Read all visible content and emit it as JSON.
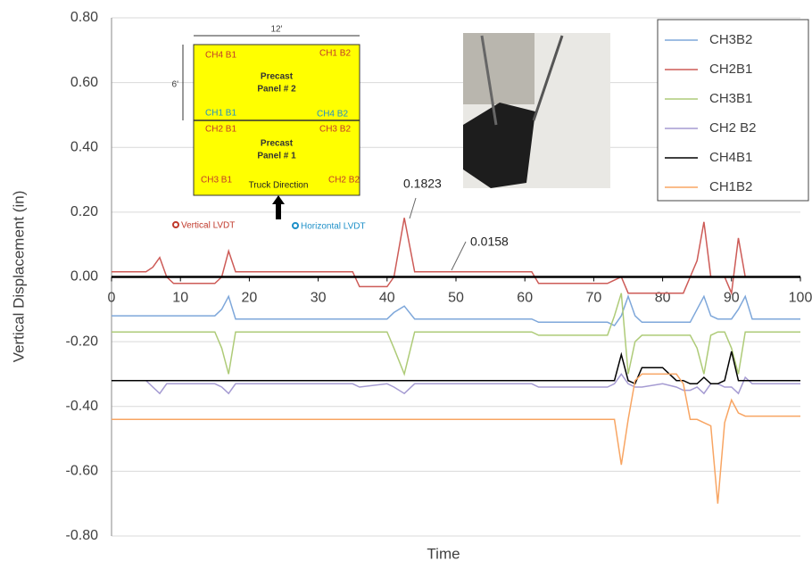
{
  "chart_data": {
    "type": "line",
    "y_label": "Vertical Displacement (in)",
    "x_label": "Time",
    "xlim": [
      0,
      100
    ],
    "xticks": [
      0,
      10,
      20,
      30,
      40,
      50,
      60,
      70,
      80,
      90,
      100
    ],
    "ylim": [
      -0.8,
      0.8
    ],
    "yticks": [
      {
        "value": -0.8,
        "label": "-0.80"
      },
      {
        "value": -0.6,
        "label": "-0.60"
      },
      {
        "value": -0.4,
        "label": "-0.40"
      },
      {
        "value": -0.2,
        "label": "-0.20"
      },
      {
        "value": 0,
        "label": "0.00"
      },
      {
        "value": 0.2,
        "label": "0.20"
      },
      {
        "value": 0.4,
        "label": "0.40"
      },
      {
        "value": 0.6,
        "label": "0.60"
      },
      {
        "value": 0.8,
        "label": "0.80"
      }
    ],
    "grid": true,
    "legend": "top-right",
    "annotations": [
      "0.1823",
      "0.0158"
    ],
    "x": [
      0,
      5,
      6,
      7,
      8,
      9,
      15,
      16,
      17,
      18,
      19,
      30,
      35,
      36,
      40,
      41,
      42.5,
      44,
      45,
      60,
      61,
      62,
      72,
      73,
      74,
      75,
      76,
      77,
      80,
      82,
      83,
      84,
      85,
      86,
      87,
      88,
      89,
      90,
      91,
      92,
      93,
      100
    ],
    "series": [
      {
        "name": "CH3B2",
        "color": "#7ea7da",
        "values": [
          -0.12,
          -0.12,
          -0.12,
          -0.12,
          -0.12,
          -0.12,
          -0.12,
          -0.1,
          -0.06,
          -0.13,
          -0.13,
          -0.13,
          -0.13,
          -0.13,
          -0.13,
          -0.11,
          -0.09,
          -0.13,
          -0.13,
          -0.13,
          -0.13,
          -0.14,
          -0.14,
          -0.15,
          -0.12,
          -0.06,
          -0.12,
          -0.14,
          -0.14,
          -0.14,
          -0.14,
          -0.14,
          -0.1,
          -0.06,
          -0.12,
          -0.13,
          -0.13,
          -0.13,
          -0.1,
          -0.06,
          -0.13,
          -0.13
        ]
      },
      {
        "name": "CH2B1",
        "color": "#cd5b57",
        "values": [
          0.016,
          0.016,
          0.03,
          0.06,
          0.0,
          -0.02,
          -0.02,
          0.0,
          0.08,
          0.016,
          0.016,
          0.016,
          0.016,
          -0.03,
          -0.03,
          0.0,
          0.1823,
          0.0158,
          0.0158,
          0.0158,
          0.0158,
          -0.02,
          -0.02,
          -0.01,
          0.0,
          -0.05,
          -0.05,
          -0.05,
          -0.05,
          -0.05,
          -0.05,
          0.0,
          0.05,
          0.17,
          0.0,
          0.0,
          0.0,
          -0.05,
          0.12,
          0.0,
          0.0,
          0.0
        ]
      },
      {
        "name": "CH3B1",
        "color": "#aecb78",
        "values": [
          -0.17,
          -0.17,
          -0.17,
          -0.17,
          -0.17,
          -0.17,
          -0.17,
          -0.22,
          -0.3,
          -0.17,
          -0.17,
          -0.17,
          -0.17,
          -0.17,
          -0.17,
          -0.22,
          -0.3,
          -0.17,
          -0.17,
          -0.17,
          -0.17,
          -0.18,
          -0.18,
          -0.12,
          -0.05,
          -0.3,
          -0.2,
          -0.18,
          -0.18,
          -0.18,
          -0.18,
          -0.18,
          -0.22,
          -0.3,
          -0.18,
          -0.17,
          -0.17,
          -0.22,
          -0.3,
          -0.17,
          -0.17,
          -0.17
        ]
      },
      {
        "name": "CH2 B2",
        "color": "#a59bd2",
        "values": [
          -0.32,
          -0.32,
          -0.34,
          -0.36,
          -0.33,
          -0.33,
          -0.33,
          -0.34,
          -0.36,
          -0.33,
          -0.33,
          -0.33,
          -0.33,
          -0.34,
          -0.33,
          -0.34,
          -0.36,
          -0.33,
          -0.33,
          -0.33,
          -0.33,
          -0.34,
          -0.34,
          -0.33,
          -0.3,
          -0.33,
          -0.34,
          -0.34,
          -0.33,
          -0.34,
          -0.35,
          -0.35,
          -0.34,
          -0.36,
          -0.33,
          -0.33,
          -0.34,
          -0.34,
          -0.36,
          -0.31,
          -0.33,
          -0.33
        ]
      },
      {
        "name": "CH4B1",
        "color": "#000000",
        "values": [
          -0.32,
          -0.32,
          -0.32,
          -0.32,
          -0.32,
          -0.32,
          -0.32,
          -0.32,
          -0.32,
          -0.32,
          -0.32,
          -0.32,
          -0.32,
          -0.32,
          -0.32,
          -0.32,
          -0.32,
          -0.32,
          -0.32,
          -0.32,
          -0.32,
          -0.32,
          -0.32,
          -0.32,
          -0.24,
          -0.32,
          -0.33,
          -0.28,
          -0.28,
          -0.32,
          -0.32,
          -0.33,
          -0.33,
          -0.31,
          -0.33,
          -0.33,
          -0.32,
          -0.23,
          -0.32,
          -0.32,
          -0.32,
          -0.32
        ]
      },
      {
        "name": "CH1B2",
        "color": "#f8a563",
        "values": [
          -0.44,
          -0.44,
          -0.44,
          -0.44,
          -0.44,
          -0.44,
          -0.44,
          -0.44,
          -0.44,
          -0.44,
          -0.44,
          -0.44,
          -0.44,
          -0.44,
          -0.44,
          -0.44,
          -0.44,
          -0.44,
          -0.44,
          -0.44,
          -0.44,
          -0.44,
          -0.44,
          -0.44,
          -0.58,
          -0.44,
          -0.32,
          -0.3,
          -0.3,
          -0.3,
          -0.33,
          -0.44,
          -0.44,
          -0.45,
          -0.46,
          -0.7,
          -0.45,
          -0.38,
          -0.42,
          -0.43,
          -0.43,
          -0.43
        ]
      }
    ],
    "inset": {
      "width_label": "12'",
      "height_label": "6'",
      "panel2": [
        "Precast",
        "Panel # 2"
      ],
      "panel1": [
        "Precast",
        "Panel # 1"
      ],
      "sensors": [
        "CH4 B1",
        "CH1 B2",
        "CH1 B1",
        "CH4 B2",
        "CH2 B1",
        "CH3 B2",
        "CH3 B1",
        "CH2 B2"
      ],
      "truck": "Truck Direction",
      "vertical": "Vertical LVDT",
      "horizontal": "Horizontal LVDT"
    }
  }
}
